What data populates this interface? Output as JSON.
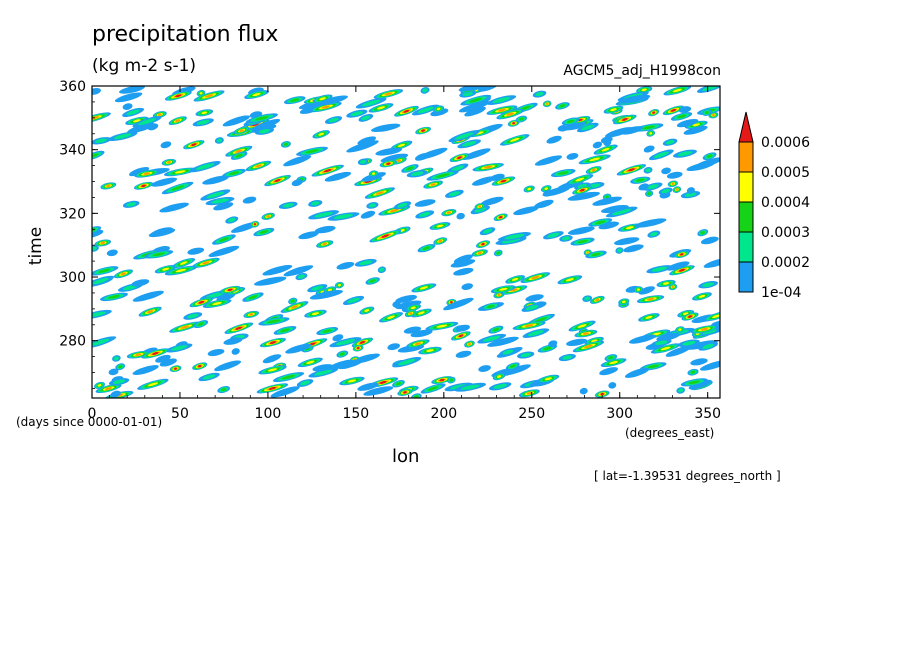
{
  "header": {
    "title": "precipitation flux",
    "units": "(kg m-2 s-1)",
    "run_name": "AGCM5_adj_H1998con"
  },
  "axes": {
    "xlabel": "lon",
    "ylabel": "time",
    "y_unit": "(days since 0000-01-01)",
    "x_unit": "(degrees_east)",
    "note": "[ lat=-1.39531 degrees_north ]"
  },
  "colors": {
    "levels": [
      "#1e9ef0",
      "#00e68c",
      "#17d317",
      "#ffff00",
      "#ff9900",
      "#e61919"
    ],
    "frame": "#000000"
  },
  "chart_data": {
    "type": "heatmap",
    "title": "precipitation flux",
    "subtitle": "(kg m-2 s-1)",
    "xlabel": "lon",
    "ylabel": "time",
    "xlim": [
      0,
      357
    ],
    "ylim": [
      262,
      360
    ],
    "x_ticks": [
      0,
      50,
      100,
      150,
      200,
      250,
      300,
      350
    ],
    "y_ticks": [
      280,
      300,
      320,
      340,
      360
    ],
    "colorbar": {
      "labels": [
        "1e-04",
        "0.0002",
        "0.0003",
        "0.0004",
        "0.0005",
        "0.0006"
      ],
      "extend": "max"
    },
    "grid": false,
    "legend_position": "right"
  }
}
